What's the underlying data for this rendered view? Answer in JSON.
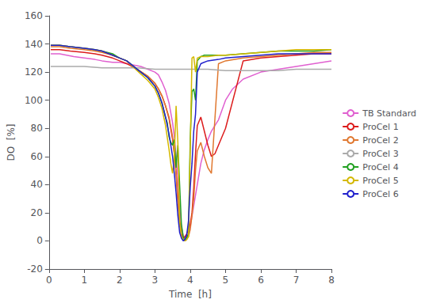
{
  "chart_data": {
    "type": "line",
    "xlabel": "Time  [h]",
    "ylabel": "DO  [%]",
    "xlim": [
      0,
      8
    ],
    "ylim": [
      -20,
      160
    ],
    "xticks": [
      0,
      1,
      2,
      3,
      4,
      5,
      6,
      7,
      8
    ],
    "yticks": [
      -20,
      0,
      20,
      40,
      60,
      80,
      100,
      120,
      140,
      160
    ],
    "grid": false,
    "legend": "right",
    "series": [
      {
        "name": "TB Standard",
        "color": "#e060d0",
        "x": [
          0.05,
          0.15,
          0.3,
          0.5,
          0.7,
          1.0,
          1.3,
          1.5,
          1.8,
          2.0,
          2.2,
          2.4,
          2.6,
          2.8,
          3.0,
          3.1,
          3.2,
          3.3,
          3.4,
          3.5,
          3.55,
          3.6,
          3.65,
          3.7,
          3.75,
          3.8,
          3.85,
          3.9,
          3.95,
          4.0,
          4.1,
          4.2,
          4.3,
          4.4,
          4.5,
          4.6,
          4.7,
          4.8,
          5.0,
          5.2,
          5.5,
          6.0,
          6.5,
          7.0,
          7.5,
          8.0
        ],
        "values": [
          133,
          133,
          133,
          132,
          131,
          130,
          129,
          128,
          127,
          127,
          126,
          125,
          124,
          122,
          120,
          118,
          113,
          107,
          98,
          84,
          74,
          60,
          44,
          24,
          10,
          4,
          2,
          3,
          5,
          10,
          25,
          40,
          55,
          65,
          72,
          78,
          82,
          86,
          100,
          108,
          115,
          120,
          122,
          124,
          126,
          128
        ]
      },
      {
        "name": "ProCel 1",
        "color": "#dc1c1c",
        "x": [
          0.05,
          0.3,
          0.6,
          1.0,
          1.3,
          1.5,
          1.8,
          2.0,
          2.2,
          2.5,
          2.8,
          3.0,
          3.1,
          3.2,
          3.3,
          3.4,
          3.5,
          3.55,
          3.6,
          3.65,
          3.7,
          3.75,
          3.8,
          3.85,
          3.9,
          3.95,
          4.0,
          4.05,
          4.1,
          4.15,
          4.2,
          4.3,
          4.4,
          4.5,
          4.6,
          4.7,
          4.8,
          5.0,
          5.5,
          6.0,
          6.5,
          7.0,
          7.5,
          8.0
        ],
        "values": [
          136,
          136,
          135,
          134,
          133,
          132,
          130,
          128,
          126,
          122,
          117,
          112,
          108,
          103,
          96,
          87,
          72,
          62,
          48,
          30,
          14,
          5,
          2,
          3,
          5,
          8,
          12,
          20,
          38,
          62,
          82,
          88,
          78,
          68,
          60,
          62,
          68,
          80,
          128,
          130,
          131,
          132,
          133,
          133
        ]
      },
      {
        "name": "ProCel 2",
        "color": "#e07830",
        "x": [
          0.05,
          0.3,
          0.6,
          1.0,
          1.3,
          1.5,
          1.8,
          2.0,
          2.2,
          2.5,
          2.8,
          3.0,
          3.1,
          3.2,
          3.3,
          3.4,
          3.5,
          3.55,
          3.6,
          3.65,
          3.7,
          3.75,
          3.8,
          3.85,
          3.9,
          3.95,
          4.0,
          4.05,
          4.1,
          4.15,
          4.2,
          4.3,
          4.4,
          4.5,
          4.6,
          4.8,
          5.0,
          5.5,
          6.0,
          6.5,
          7.0,
          7.5,
          8.0
        ],
        "values": [
          138,
          138,
          137,
          136,
          135,
          134,
          132,
          130,
          128,
          122,
          117,
          112,
          108,
          103,
          96,
          88,
          74,
          62,
          48,
          28,
          12,
          4,
          1,
          0,
          1,
          3,
          8,
          18,
          30,
          50,
          64,
          70,
          60,
          52,
          48,
          126,
          128,
          130,
          131,
          132,
          133,
          134,
          134
        ]
      },
      {
        "name": "ProCel 3",
        "color": "#aaaaaa",
        "x": [
          0.05,
          0.5,
          1.0,
          1.5,
          2.0,
          2.5,
          3.0,
          3.5,
          4.0,
          4.5,
          5.0,
          5.5,
          6.0,
          6.5,
          7.0,
          7.5,
          8.0
        ],
        "values": [
          124,
          124,
          124,
          123,
          123,
          123,
          122,
          122,
          122,
          122,
          121,
          121,
          121,
          121,
          122,
          122,
          122
        ]
      },
      {
        "name": "ProCel 4",
        "color": "#20a020",
        "x": [
          0.05,
          0.3,
          0.6,
          1.0,
          1.3,
          1.5,
          1.8,
          2.0,
          2.2,
          2.5,
          2.8,
          3.0,
          3.1,
          3.2,
          3.3,
          3.35,
          3.4,
          3.45,
          3.5,
          3.55,
          3.6,
          3.65,
          3.7,
          3.75,
          3.8,
          3.85,
          3.9,
          3.95,
          4.0,
          4.05,
          4.1,
          4.15,
          4.2,
          4.3,
          4.4,
          4.5,
          4.8,
          5.0,
          5.5,
          6.0,
          6.5,
          7.0,
          7.5,
          8.0
        ],
        "values": [
          139,
          139,
          138,
          137,
          136,
          135,
          133,
          130,
          128,
          122,
          116,
          110,
          105,
          98,
          88,
          84,
          74,
          70,
          68,
          72,
          52,
          68,
          40,
          12,
          3,
          0,
          2,
          5,
          72,
          106,
          108,
          100,
          128,
          131,
          132,
          132,
          132,
          132,
          133,
          134,
          135,
          135,
          135,
          136
        ]
      },
      {
        "name": "ProCel 5",
        "color": "#d4b800",
        "x": [
          0.05,
          0.3,
          0.6,
          1.0,
          1.3,
          1.5,
          1.8,
          2.0,
          2.2,
          2.5,
          2.8,
          3.0,
          3.1,
          3.2,
          3.3,
          3.4,
          3.45,
          3.5,
          3.55,
          3.6,
          3.65,
          3.7,
          3.75,
          3.8,
          3.85,
          3.9,
          3.95,
          4.0,
          4.05,
          4.1,
          4.15,
          4.2,
          4.3,
          4.5,
          4.8,
          5.0,
          5.5,
          6.0,
          6.5,
          7.0,
          7.5,
          8.0
        ],
        "values": [
          139,
          139,
          138,
          137,
          136,
          135,
          132,
          130,
          128,
          121,
          114,
          108,
          102,
          94,
          82,
          65,
          55,
          48,
          60,
          96,
          70,
          14,
          3,
          1,
          0,
          1,
          3,
          64,
          130,
          131,
          120,
          130,
          131,
          131,
          132,
          132,
          133,
          134,
          135,
          136,
          136,
          136
        ]
      },
      {
        "name": "ProCel 6",
        "color": "#2020cc",
        "x": [
          0.05,
          0.3,
          0.6,
          1.0,
          1.3,
          1.5,
          1.8,
          2.0,
          2.2,
          2.5,
          2.8,
          3.0,
          3.1,
          3.2,
          3.3,
          3.4,
          3.5,
          3.55,
          3.6,
          3.65,
          3.7,
          3.75,
          3.8,
          3.85,
          3.9,
          3.95,
          4.0,
          4.05,
          4.1,
          4.15,
          4.2,
          4.3,
          4.5,
          4.8,
          5.0,
          5.5,
          6.0,
          6.5,
          7.0,
          7.5,
          8.0
        ],
        "values": [
          139,
          139,
          138,
          137,
          136,
          135,
          132,
          130,
          128,
          122,
          116,
          110,
          105,
          98,
          88,
          76,
          60,
          48,
          34,
          18,
          6,
          2,
          0,
          1,
          4,
          14,
          38,
          55,
          78,
          90,
          120,
          126,
          128,
          129,
          130,
          131,
          132,
          133,
          133,
          133,
          133
        ]
      }
    ]
  }
}
